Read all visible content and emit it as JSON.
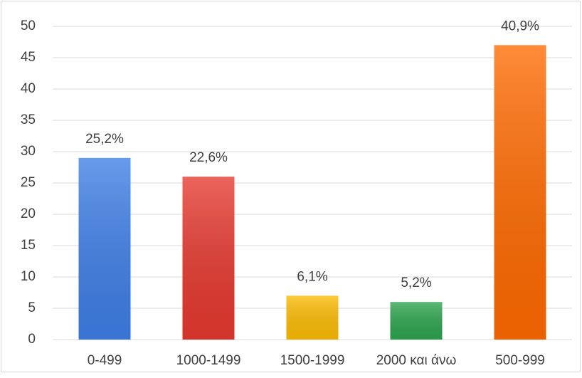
{
  "chart_data": {
    "type": "bar",
    "categories": [
      "0-499",
      "1000-1499",
      "1500-1999",
      "2000 και άνω",
      "500-999"
    ],
    "values": [
      29,
      26,
      7,
      6,
      47
    ],
    "value_labels": [
      "25,2%",
      "22,6%",
      "6,1%",
      "5,2%",
      "40,9%"
    ],
    "colors": [
      "#3f7fe6",
      "#e5392f",
      "#fbbc04",
      "#2ea44f",
      "#ff6a00"
    ],
    "ylim": [
      0,
      50
    ],
    "yticks": [
      0,
      5,
      10,
      15,
      20,
      25,
      30,
      35,
      40,
      45,
      50
    ],
    "grid": true
  }
}
